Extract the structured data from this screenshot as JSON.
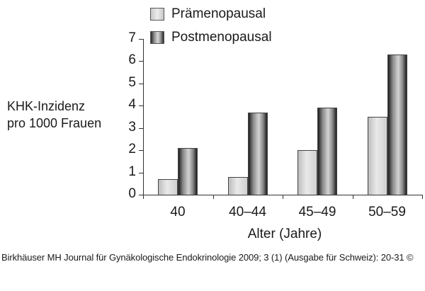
{
  "chart_data": {
    "type": "bar",
    "title": "",
    "xlabel": "Alter (Jahre)",
    "ylabel": "KHK-Inzidenz pro 1000 Frauen",
    "ylabel_lines": [
      "KHK-Inzidenz",
      "pro 1000 Frauen"
    ],
    "categories": [
      "40",
      "40–44",
      "45–49",
      "50–59"
    ],
    "series": [
      {
        "name": "Prämenopausal",
        "values": [
          0.7,
          0.8,
          2.0,
          3.5
        ]
      },
      {
        "name": "Postmenopausal",
        "values": [
          2.1,
          3.7,
          3.9,
          6.3
        ]
      }
    ],
    "yticks": [
      "0",
      "1",
      "2",
      "3",
      "4",
      "5",
      "6",
      "7"
    ],
    "ylim": [
      0,
      7
    ],
    "grid": false,
    "legend_position": "top"
  },
  "legend": {
    "pre_label": "Prämenopausal",
    "post_label": "Postmenopausal"
  },
  "caption": "Birkhäuser MH Journal für Gynäkologische Endokrinologie 2009; 3 (1) (Ausgabe für Schweiz): 20-31 ©"
}
